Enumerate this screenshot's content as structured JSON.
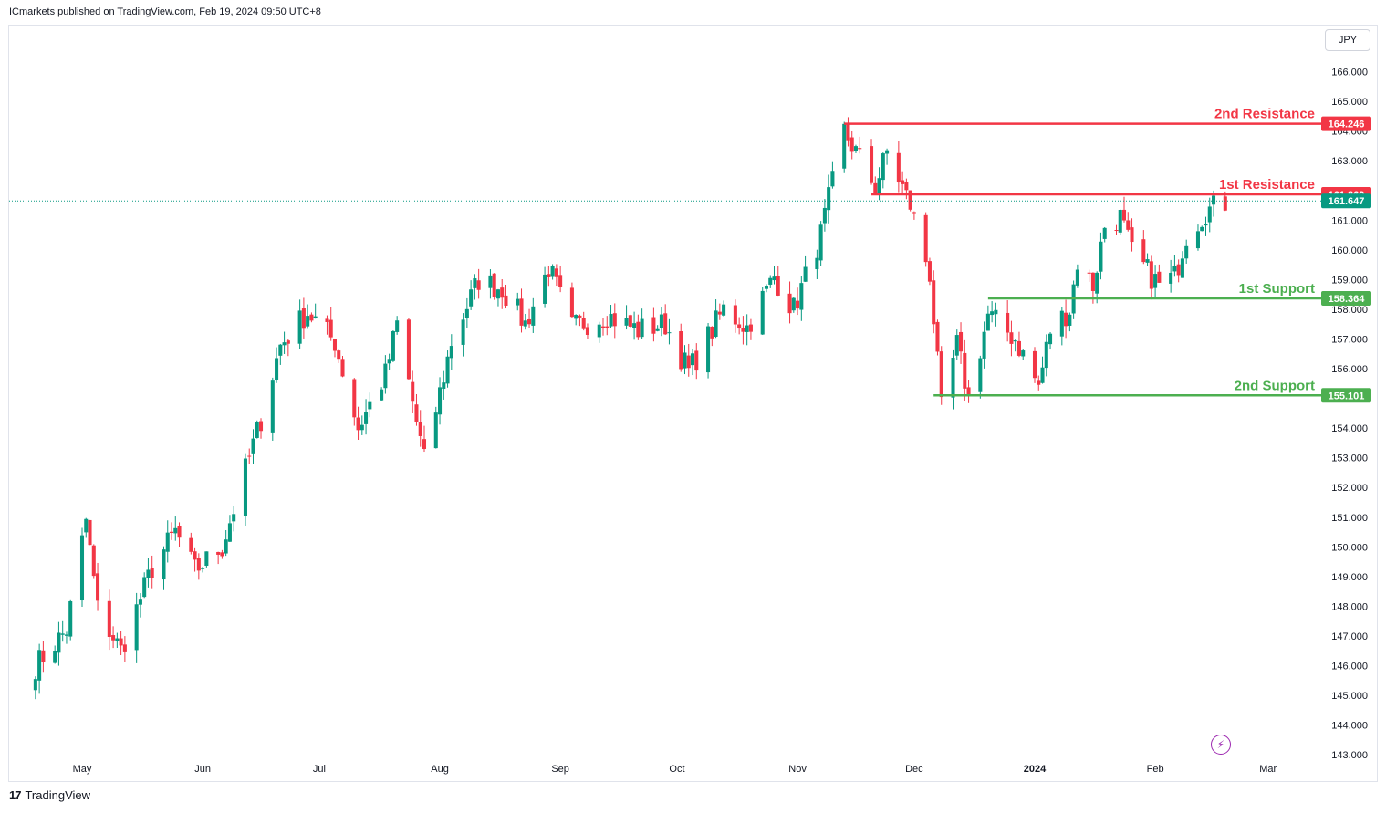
{
  "header": {
    "publish_text": "ICmarkets published on TradingView.com, Feb 19, 2024 09:50 UTC+8"
  },
  "currency": "JPY",
  "footer": {
    "brand_mark": "17",
    "brand": "TradingView"
  },
  "colors": {
    "up": "#089981",
    "down": "#f23645",
    "resistance": "#f23645",
    "support": "#4caf50",
    "last_price": "#089981"
  },
  "chart_data": {
    "type": "candlestick",
    "y_unit": "JPY",
    "ylim": [
      143.0,
      167.0
    ],
    "y_ticks": [
      "166.000",
      "165.000",
      "164.000",
      "163.000",
      "162.000",
      "161.000",
      "160.000",
      "159.000",
      "158.000",
      "157.000",
      "156.000",
      "155.000",
      "154.000",
      "153.000",
      "152.000",
      "151.000",
      "150.000",
      "149.000",
      "148.000",
      "147.000",
      "146.000",
      "145.000",
      "144.000",
      "143.000"
    ],
    "x_labels": [
      {
        "label": "May",
        "date": "2023-05-01"
      },
      {
        "label": "Jun",
        "date": "2023-06-01"
      },
      {
        "label": "Jul",
        "date": "2023-07-01"
      },
      {
        "label": "Aug",
        "date": "2023-08-01"
      },
      {
        "label": "Sep",
        "date": "2023-09-01"
      },
      {
        "label": "Oct",
        "date": "2023-10-01"
      },
      {
        "label": "Nov",
        "date": "2023-11-01"
      },
      {
        "label": "Dec",
        "date": "2023-12-01"
      },
      {
        "label": "2024",
        "date": "2024-01-01",
        "bold": true
      },
      {
        "label": "Feb",
        "date": "2024-02-01"
      },
      {
        "label": "Mar",
        "date": "2024-03-01"
      }
    ],
    "levels": [
      {
        "name": "2nd Resistance",
        "value": 164.246,
        "label": "164.246",
        "kind": "resistance",
        "from": "2023-11-13"
      },
      {
        "name": "1st Resistance",
        "value": 161.869,
        "label": "161.869",
        "kind": "resistance",
        "from": "2023-11-20"
      },
      {
        "name": "1st Support",
        "value": 158.364,
        "label": "158.364",
        "kind": "support",
        "from": "2023-12-20"
      },
      {
        "name": "2nd Support",
        "value": 155.101,
        "label": "155.101",
        "kind": "support",
        "from": "2023-12-06"
      }
    ],
    "last_price": {
      "value": 161.647,
      "label": "161.647"
    },
    "anchors": [
      {
        "d": "2023-04-19",
        "c": 146.0
      },
      {
        "d": "2023-04-27",
        "c": 147.2
      },
      {
        "d": "2023-05-02",
        "c": 150.9
      },
      {
        "d": "2023-05-05",
        "c": 147.9
      },
      {
        "d": "2023-05-11",
        "c": 146.5
      },
      {
        "d": "2023-05-19",
        "c": 149.3
      },
      {
        "d": "2023-05-25",
        "c": 150.5
      },
      {
        "d": "2023-05-30",
        "c": 149.2
      },
      {
        "d": "2023-06-06",
        "c": 150.0
      },
      {
        "d": "2023-06-16",
        "c": 154.3
      },
      {
        "d": "2023-06-21",
        "c": 156.8
      },
      {
        "d": "2023-06-28",
        "c": 157.9
      },
      {
        "d": "2023-07-05",
        "c": 156.9
      },
      {
        "d": "2023-07-11",
        "c": 154.0
      },
      {
        "d": "2023-07-18",
        "c": 155.8
      },
      {
        "d": "2023-07-21",
        "c": 157.5
      },
      {
        "d": "2023-07-28",
        "c": 152.9
      },
      {
        "d": "2023-08-04",
        "c": 156.9
      },
      {
        "d": "2023-08-11",
        "c": 159.0
      },
      {
        "d": "2023-08-17",
        "c": 158.7
      },
      {
        "d": "2023-08-23",
        "c": 157.5
      },
      {
        "d": "2023-08-29",
        "c": 159.4
      },
      {
        "d": "2023-09-04",
        "c": 157.4
      },
      {
        "d": "2023-09-13",
        "c": 157.8
      },
      {
        "d": "2023-09-21",
        "c": 157.3
      },
      {
        "d": "2023-09-28",
        "c": 157.5
      },
      {
        "d": "2023-10-04",
        "c": 155.9
      },
      {
        "d": "2023-10-13",
        "c": 158.0
      },
      {
        "d": "2023-10-19",
        "c": 157.4
      },
      {
        "d": "2023-10-26",
        "c": 159.1
      },
      {
        "d": "2023-10-31",
        "c": 158.0
      },
      {
        "d": "2023-11-07",
        "c": 160.5
      },
      {
        "d": "2023-11-13",
        "c": 164.0
      },
      {
        "d": "2023-11-21",
        "c": 162.1
      },
      {
        "d": "2023-11-24",
        "c": 163.3
      },
      {
        "d": "2023-11-30",
        "c": 161.5
      },
      {
        "d": "2023-12-05",
        "c": 159.2
      },
      {
        "d": "2023-12-08",
        "c": 154.6
      },
      {
        "d": "2023-12-12",
        "c": 156.8
      },
      {
        "d": "2023-12-15",
        "c": 155.0
      },
      {
        "d": "2023-12-20",
        "c": 157.8
      },
      {
        "d": "2023-12-27",
        "c": 157.0
      },
      {
        "d": "2024-01-02",
        "c": 155.4
      },
      {
        "d": "2024-01-05",
        "c": 157.3
      },
      {
        "d": "2024-01-10",
        "c": 158.0
      },
      {
        "d": "2024-01-12",
        "c": 159.6
      },
      {
        "d": "2024-01-16",
        "c": 158.8
      },
      {
        "d": "2024-01-19",
        "c": 160.8
      },
      {
        "d": "2024-01-23",
        "c": 161.1
      },
      {
        "d": "2024-01-26",
        "c": 159.9
      },
      {
        "d": "2024-02-02",
        "c": 158.8
      },
      {
        "d": "2024-02-06",
        "c": 159.1
      },
      {
        "d": "2024-02-09",
        "c": 160.5
      },
      {
        "d": "2024-02-14",
        "c": 161.3
      },
      {
        "d": "2024-02-19",
        "c": 161.6
      }
    ]
  }
}
